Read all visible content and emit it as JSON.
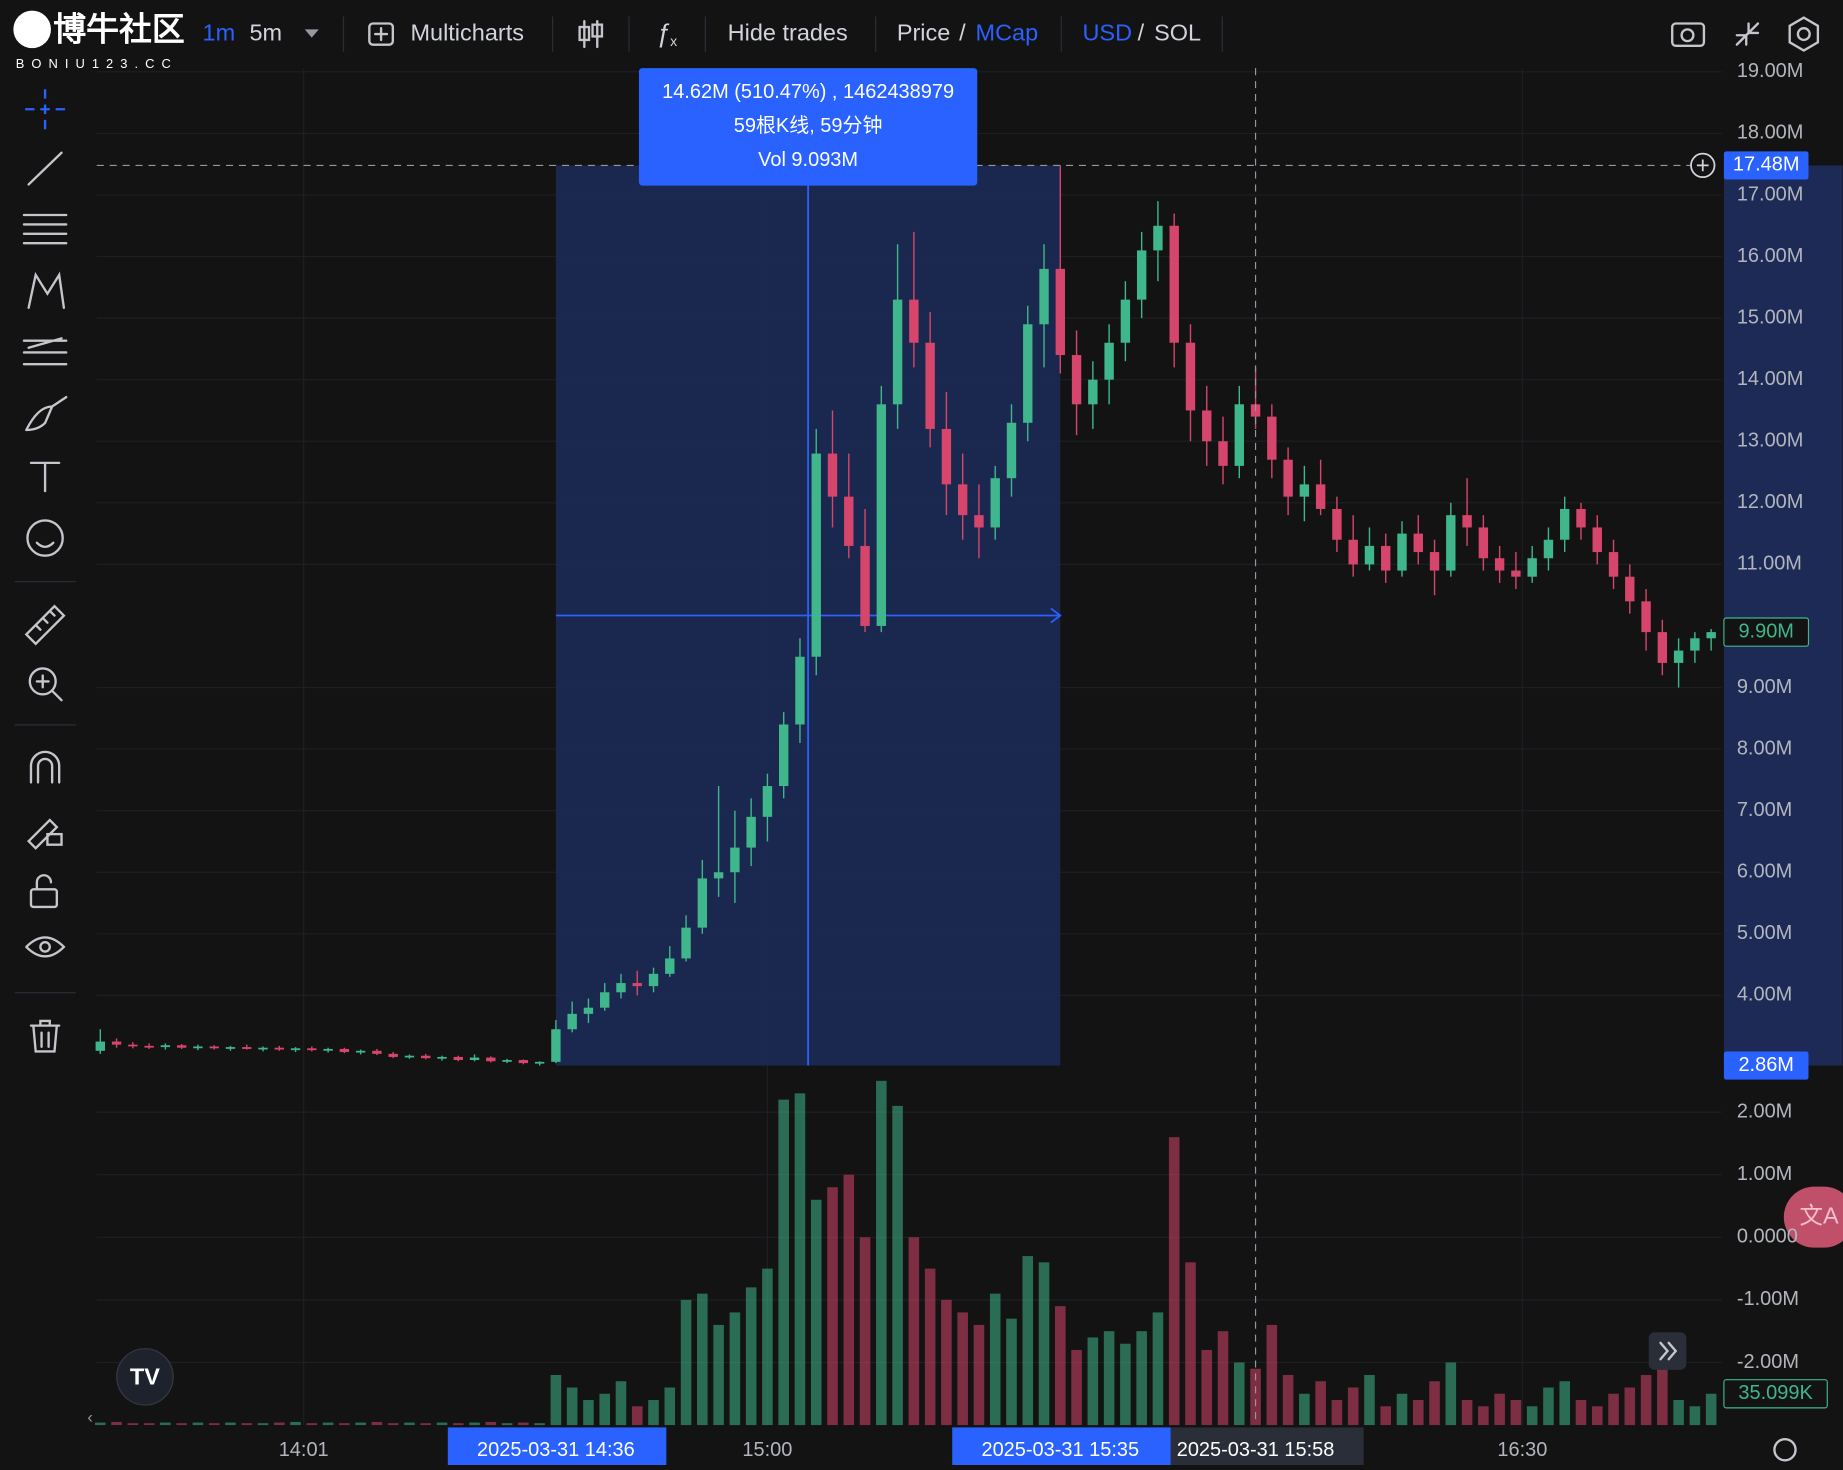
{
  "watermark": {
    "title": "博牛社区",
    "url": "BONIU123.CC"
  },
  "toolbar": {
    "interval_1": "1m",
    "interval_2": "5m",
    "multicharts": "Multicharts",
    "hide_trades": "Hide trades",
    "price": "Price",
    "price_sep": "/",
    "mcap": "MCap",
    "usd": "USD",
    "currency_sep": "/",
    "sol": "SOL"
  },
  "chart_data": {
    "type": "candlestick",
    "up_color": "#3fb68b",
    "down_color": "#d6456b",
    "grid": true,
    "candles": [
      [
        3.1,
        3.45,
        3.05,
        3.25
      ],
      [
        3.25,
        3.3,
        3.15,
        3.2
      ],
      [
        3.2,
        3.24,
        3.14,
        3.18
      ],
      [
        3.18,
        3.22,
        3.13,
        3.16
      ],
      [
        3.16,
        3.22,
        3.12,
        3.19
      ],
      [
        3.19,
        3.21,
        3.13,
        3.15
      ],
      [
        3.15,
        3.2,
        3.11,
        3.17
      ],
      [
        3.17,
        3.19,
        3.12,
        3.14
      ],
      [
        3.14,
        3.18,
        3.1,
        3.16
      ],
      [
        3.16,
        3.2,
        3.12,
        3.13
      ],
      [
        3.13,
        3.17,
        3.09,
        3.15
      ],
      [
        3.15,
        3.18,
        3.1,
        3.12
      ],
      [
        3.12,
        3.16,
        3.08,
        3.14
      ],
      [
        3.14,
        3.17,
        3.09,
        3.11
      ],
      [
        3.11,
        3.15,
        3.07,
        3.13
      ],
      [
        3.13,
        3.15,
        3.06,
        3.08
      ],
      [
        3.08,
        3.12,
        3.04,
        3.1
      ],
      [
        3.1,
        3.13,
        3.03,
        3.05
      ],
      [
        3.05,
        3.08,
        2.98,
        3.0
      ],
      [
        3.0,
        3.04,
        2.97,
        3.02
      ],
      [
        3.02,
        3.05,
        2.96,
        2.98
      ],
      [
        2.98,
        3.02,
        2.94,
        3.0
      ],
      [
        3.0,
        3.02,
        2.93,
        2.95
      ],
      [
        2.95,
        3.04,
        2.93,
        2.99
      ],
      [
        2.99,
        3.01,
        2.91,
        2.93
      ],
      [
        2.93,
        2.97,
        2.9,
        2.95
      ],
      [
        2.95,
        2.96,
        2.88,
        2.9
      ],
      [
        2.9,
        2.93,
        2.86,
        2.92
      ],
      [
        2.92,
        3.6,
        2.9,
        3.45
      ],
      [
        3.45,
        3.9,
        3.4,
        3.7
      ],
      [
        3.7,
        3.95,
        3.55,
        3.8
      ],
      [
        3.8,
        4.2,
        3.75,
        4.05
      ],
      [
        4.05,
        4.35,
        3.95,
        4.2
      ],
      [
        4.2,
        4.4,
        4.0,
        4.15
      ],
      [
        4.15,
        4.45,
        4.05,
        4.35
      ],
      [
        4.35,
        4.8,
        4.3,
        4.6
      ],
      [
        4.6,
        5.3,
        4.55,
        5.1
      ],
      [
        5.1,
        6.2,
        5.0,
        5.9
      ],
      [
        5.9,
        7.4,
        5.6,
        6.0
      ],
      [
        6.0,
        7.0,
        5.5,
        6.4
      ],
      [
        6.4,
        7.2,
        6.1,
        6.9
      ],
      [
        6.9,
        7.6,
        6.5,
        7.4
      ],
      [
        7.4,
        8.6,
        7.2,
        8.4
      ],
      [
        8.4,
        9.8,
        8.1,
        9.5
      ],
      [
        9.5,
        13.2,
        9.2,
        12.8
      ],
      [
        12.8,
        13.5,
        11.6,
        12.1
      ],
      [
        12.1,
        12.8,
        11.1,
        11.3
      ],
      [
        11.3,
        11.9,
        9.9,
        10.0
      ],
      [
        10.0,
        13.9,
        9.9,
        13.6
      ],
      [
        13.6,
        16.2,
        13.2,
        15.3
      ],
      [
        15.3,
        16.4,
        14.2,
        14.6
      ],
      [
        14.6,
        15.1,
        12.9,
        13.2
      ],
      [
        13.2,
        13.8,
        11.8,
        12.3
      ],
      [
        12.3,
        12.8,
        11.4,
        11.8
      ],
      [
        11.8,
        12.3,
        11.1,
        11.6
      ],
      [
        11.6,
        12.6,
        11.4,
        12.4
      ],
      [
        12.4,
        13.6,
        12.1,
        13.3
      ],
      [
        13.3,
        15.2,
        13.0,
        14.9
      ],
      [
        14.9,
        16.2,
        14.2,
        15.8
      ],
      [
        15.8,
        17.48,
        14.1,
        14.4
      ],
      [
        14.4,
        14.8,
        13.1,
        13.6
      ],
      [
        13.6,
        14.3,
        13.2,
        14.0
      ],
      [
        14.0,
        14.9,
        13.6,
        14.6
      ],
      [
        14.6,
        15.6,
        14.3,
        15.3
      ],
      [
        15.3,
        16.4,
        15.0,
        16.1
      ],
      [
        16.1,
        16.9,
        15.6,
        16.5
      ],
      [
        16.5,
        16.7,
        14.2,
        14.6
      ],
      [
        14.6,
        14.9,
        13.0,
        13.5
      ],
      [
        13.5,
        13.9,
        12.6,
        13.0
      ],
      [
        13.0,
        13.4,
        12.3,
        12.6
      ],
      [
        12.6,
        13.9,
        12.4,
        13.6
      ],
      [
        13.6,
        14.2,
        13.2,
        13.4
      ],
      [
        13.4,
        13.6,
        12.4,
        12.7
      ],
      [
        12.7,
        12.9,
        11.8,
        12.1
      ],
      [
        12.1,
        12.6,
        11.7,
        12.3
      ],
      [
        12.3,
        12.7,
        11.8,
        11.9
      ],
      [
        11.9,
        12.1,
        11.2,
        11.4
      ],
      [
        11.4,
        11.8,
        10.8,
        11.0
      ],
      [
        11.0,
        11.6,
        10.9,
        11.3
      ],
      [
        11.3,
        11.5,
        10.7,
        10.9
      ],
      [
        10.9,
        11.7,
        10.8,
        11.5
      ],
      [
        11.5,
        11.8,
        11.0,
        11.2
      ],
      [
        11.2,
        11.4,
        10.5,
        10.9
      ],
      [
        10.9,
        12.0,
        10.8,
        11.8
      ],
      [
        11.8,
        12.4,
        11.3,
        11.6
      ],
      [
        11.6,
        11.8,
        10.9,
        11.1
      ],
      [
        11.1,
        11.3,
        10.7,
        10.9
      ],
      [
        10.9,
        11.2,
        10.6,
        10.8
      ],
      [
        10.8,
        11.3,
        10.7,
        11.1
      ],
      [
        11.1,
        11.6,
        10.9,
        11.4
      ],
      [
        11.4,
        12.1,
        11.2,
        11.9
      ],
      [
        11.9,
        12.0,
        11.4,
        11.6
      ],
      [
        11.6,
        11.8,
        11.0,
        11.2
      ],
      [
        11.2,
        11.4,
        10.6,
        10.8
      ],
      [
        10.8,
        11.0,
        10.2,
        10.4
      ],
      [
        10.4,
        10.6,
        9.6,
        9.9
      ],
      [
        9.9,
        10.1,
        9.2,
        9.4
      ],
      [
        9.4,
        9.8,
        9.0,
        9.6
      ],
      [
        9.6,
        9.9,
        9.4,
        9.8
      ],
      [
        9.8,
        9.95,
        9.6,
        9.9
      ]
    ],
    "ylim": [
      2.86,
      19.06
    ],
    "yticks": [
      {
        "value": 19,
        "label": "19.00M"
      },
      {
        "value": 18,
        "label": "18.00M"
      },
      {
        "value": 17,
        "label": "17.00M"
      },
      {
        "value": 16,
        "label": "16.00M"
      },
      {
        "value": 15,
        "label": "15.00M"
      },
      {
        "value": 14,
        "label": "14.00M"
      },
      {
        "value": 13,
        "label": "13.00M"
      },
      {
        "value": 12,
        "label": "12.00M"
      },
      {
        "value": 11,
        "label": "11.00M"
      },
      {
        "value": 9,
        "label": "9.00M"
      },
      {
        "value": 8,
        "label": "8.00M"
      },
      {
        "value": 7,
        "label": "7.00M"
      },
      {
        "value": 6,
        "label": "6.00M"
      },
      {
        "value": 5,
        "label": "5.00M"
      },
      {
        "value": 4,
        "label": "4.00M"
      }
    ],
    "markers": [
      {
        "value": 17.48,
        "label": "17.48M",
        "style": "blue"
      },
      {
        "value": 9.9,
        "label": "9.90M",
        "style": "green"
      },
      {
        "value": 2.86,
        "label": "2.86M",
        "style": "blue"
      }
    ],
    "volume": {
      "values": [
        -2.96,
        -2.95,
        -2.97,
        -2.97,
        -2.96,
        -2.97,
        -2.96,
        -2.97,
        -2.96,
        -2.97,
        -2.97,
        -2.96,
        -2.95,
        -2.97,
        -2.96,
        -2.97,
        -2.96,
        -2.95,
        -2.97,
        -2.96,
        -2.97,
        -2.96,
        -2.97,
        -2.96,
        -2.95,
        -2.97,
        -2.96,
        -2.97,
        -2.2,
        -2.4,
        -2.6,
        -2.5,
        -2.3,
        -2.7,
        -2.6,
        -2.4,
        -1.0,
        -0.9,
        -1.4,
        -1.2,
        -0.8,
        -0.5,
        2.2,
        2.3,
        0.6,
        0.8,
        1.0,
        0.0,
        2.5,
        2.1,
        0.0,
        -0.5,
        -1.0,
        -1.2,
        -1.4,
        -0.9,
        -1.3,
        -0.3,
        -0.4,
        -1.1,
        -1.8,
        -1.6,
        -1.5,
        -1.7,
        -1.5,
        -1.2,
        1.6,
        -0.4,
        -1.8,
        -1.5,
        -2.0,
        -2.1,
        -1.4,
        -2.2,
        -2.5,
        -2.3,
        -2.6,
        -2.4,
        -2.2,
        -2.7,
        -2.5,
        -2.6,
        -2.3,
        -2.0,
        -2.6,
        -2.7,
        -2.5,
        -2.6,
        -2.7,
        -2.4,
        -2.3,
        -2.6,
        -2.7,
        -2.5,
        -2.4,
        -2.2,
        -2.1,
        -2.6,
        -2.7,
        -2.5
      ],
      "ylim": [
        -3.0,
        2.5
      ],
      "yticks": [
        {
          "value": 2,
          "label": "2.00M"
        },
        {
          "value": 1,
          "label": "1.00M"
        },
        {
          "value": 0,
          "label": "0.0000"
        },
        {
          "value": -1,
          "label": "-1.00M"
        },
        {
          "value": -2,
          "label": "-2.00M"
        }
      ],
      "marker": {
        "value": -2.5,
        "label": "35.099K"
      }
    },
    "xticks": [
      {
        "value": 12.5,
        "label": "14:01"
      },
      {
        "value": 28,
        "label": "2025-03-31 14:36",
        "box": "blue"
      },
      {
        "value": 41,
        "label": "15:00"
      },
      {
        "value": 59,
        "label": "2025-03-31 15:35",
        "box": "blue"
      },
      {
        "value": 71,
        "label": "2025-03-31 15:58",
        "box": "dark"
      },
      {
        "value": 87.4,
        "label": "16:30"
      }
    ],
    "measure": {
      "start": 28,
      "end": 59,
      "low": 2.86,
      "high": 17.48,
      "lines": [
        "14.62M (510.47%) , 1462438979",
        "59根K线, 59分钟",
        "Vol 9.093M"
      ]
    },
    "crosshair": {
      "index": 71,
      "value": 17.48
    }
  }
}
